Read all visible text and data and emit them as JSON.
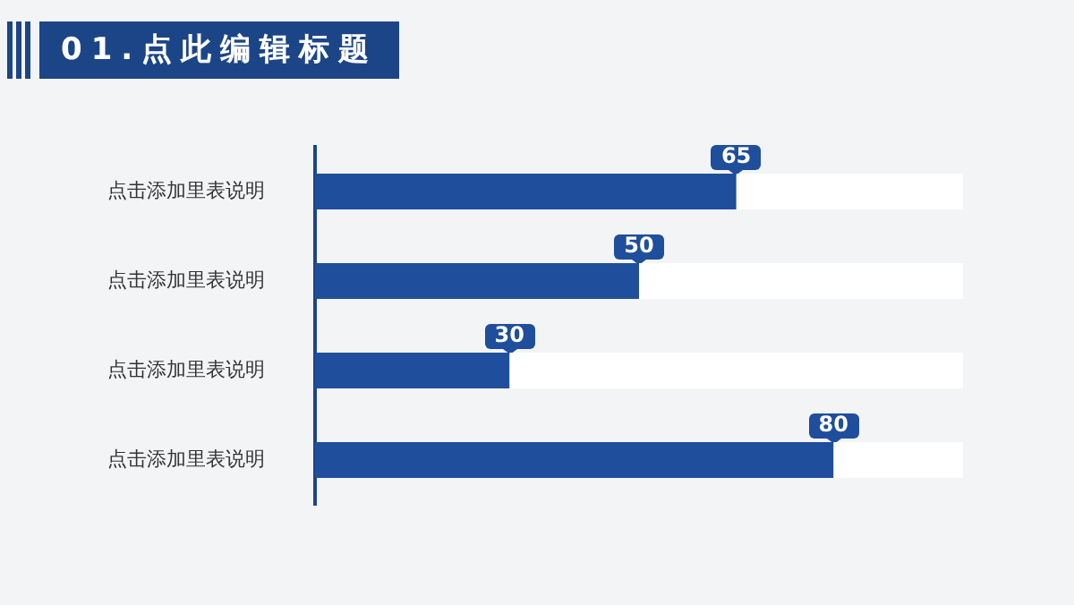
{
  "chart_data": {
    "type": "bar",
    "orientation": "horizontal",
    "title": "01.点此编辑标题",
    "categories": [
      "点击添加里表说明",
      "点击添加里表说明",
      "点击添加里表说明",
      "点击添加里表说明"
    ],
    "tick_labels": "y",
    "stacked": true,
    "series": [
      {
        "color": "#1f4e9c",
        "values": [
          65,
          50,
          30,
          80
        ],
        "value_labels": [
          "65",
          "50",
          "30",
          "80"
        ]
      },
      {
        "color": "#ffffff",
        "values": [
          35,
          50,
          70,
          20
        ]
      }
    ]
  }
}
